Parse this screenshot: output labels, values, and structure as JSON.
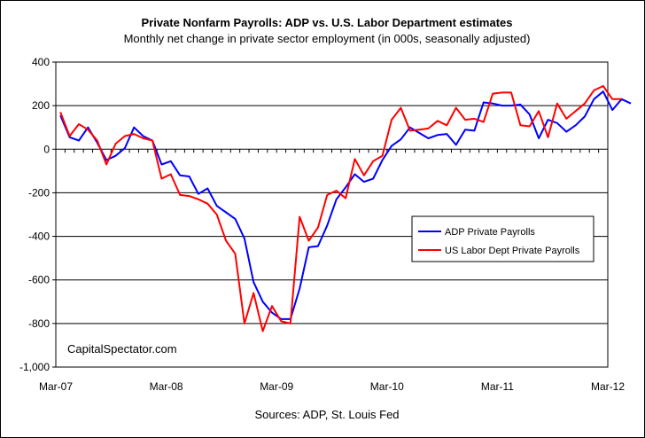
{
  "chart_data": {
    "type": "line",
    "title": "Private Nonfarm Payrolls: ADP vs. U.S. Labor Department estimates",
    "subtitle": "Monthly net change in private sector employment (in 000s, seasonally adjusted)",
    "source": "Sources: ADP, St. Louis Fed",
    "watermark": "CapitalSpectator.com",
    "xlabel": "",
    "ylabel": "",
    "ylim": [
      -1000,
      400
    ],
    "yticks": [
      400,
      200,
      0,
      -200,
      -400,
      -600,
      -800,
      -1000
    ],
    "ytick_labels": [
      "400",
      "200",
      "0",
      "-200",
      "-400",
      "-600",
      "-800",
      "-1,000"
    ],
    "x_start": "2007-03",
    "xtick_labels": [
      "Mar-07",
      "Mar-08",
      "Mar-09",
      "Mar-10",
      "Mar-11",
      "Mar-12"
    ],
    "grid": "horizontal",
    "legend_position": "right-middle",
    "colors": {
      "adp": "#0000ff",
      "bls": "#ff0000",
      "plot_bg": "#ffffff",
      "grid": "#000000"
    },
    "series": [
      {
        "name": "ADP Private Payrolls",
        "color": "#0000ff",
        "values": [
          155,
          55,
          40,
          100,
          30,
          -50,
          -30,
          5,
          100,
          60,
          40,
          -70,
          -55,
          -120,
          -125,
          -205,
          -180,
          -260,
          -290,
          -320,
          -410,
          -610,
          -700,
          -750,
          -780,
          -780,
          -640,
          -450,
          -445,
          -350,
          -230,
          -175,
          -115,
          -150,
          -135,
          -50,
          15,
          45,
          100,
          75,
          50,
          65,
          70,
          20,
          90,
          85,
          215,
          210,
          200,
          200,
          205,
          160,
          50,
          135,
          120,
          80,
          110,
          150,
          230,
          265,
          180,
          230,
          210
        ]
      },
      {
        "name": "US Labor Dept Private Payrolls",
        "color": "#ff0000",
        "values": [
          170,
          60,
          115,
          90,
          40,
          -70,
          25,
          60,
          70,
          50,
          40,
          -135,
          -115,
          -210,
          -215,
          -230,
          -250,
          -300,
          -420,
          -480,
          -800,
          -660,
          -835,
          -720,
          -790,
          -800,
          -310,
          -420,
          -360,
          -210,
          -190,
          -225,
          -45,
          -120,
          -55,
          -30,
          135,
          190,
          85,
          90,
          95,
          130,
          110,
          190,
          135,
          140,
          125,
          255,
          260,
          260,
          110,
          105,
          175,
          55,
          210,
          140,
          175,
          210,
          270,
          290,
          230,
          230
        ]
      }
    ]
  }
}
